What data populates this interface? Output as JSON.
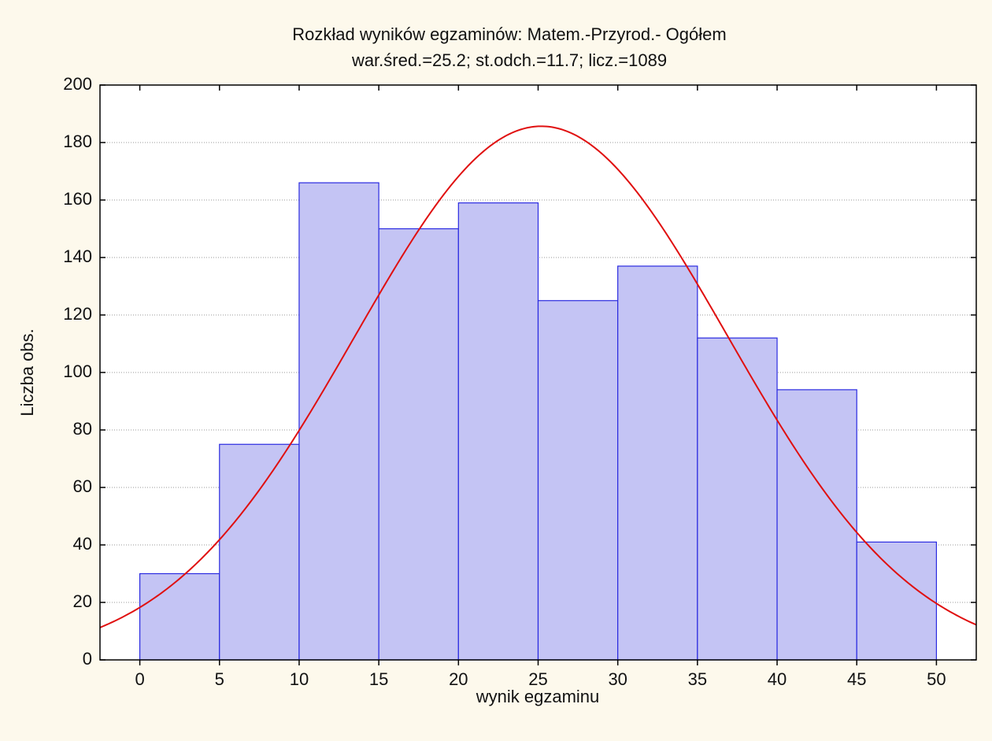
{
  "chart_data": {
    "type": "histogram",
    "title": "Rozkład wyników egzaminów: Matem.-Przyrod.- Ogółem",
    "subtitle": "war.śred.=25.2;  st.odch.=11.7;  licz.=1089",
    "x_label": "wynik egzaminu",
    "y_label": "Liczba obs.",
    "bins": [
      0,
      5,
      10,
      15,
      20,
      25,
      30,
      35,
      40,
      45,
      50
    ],
    "values": [
      30,
      75,
      166,
      150,
      159,
      125,
      137,
      112,
      94,
      41
    ],
    "color": "#c4c4f4",
    "edge_color": "#2a2ae0",
    "normal_fit": {
      "mean": 25.2,
      "sd": 11.7,
      "n": 1089,
      "color": "#e01010"
    },
    "xlim": [
      -2.5,
      52.5
    ],
    "xticks": [
      0,
      5,
      10,
      15,
      20,
      25,
      30,
      35,
      40,
      45,
      50
    ],
    "ylim": [
      0,
      200
    ],
    "yticks": [
      0,
      20,
      40,
      60,
      80,
      100,
      120,
      140,
      160,
      180,
      200
    ],
    "grid": true
  }
}
